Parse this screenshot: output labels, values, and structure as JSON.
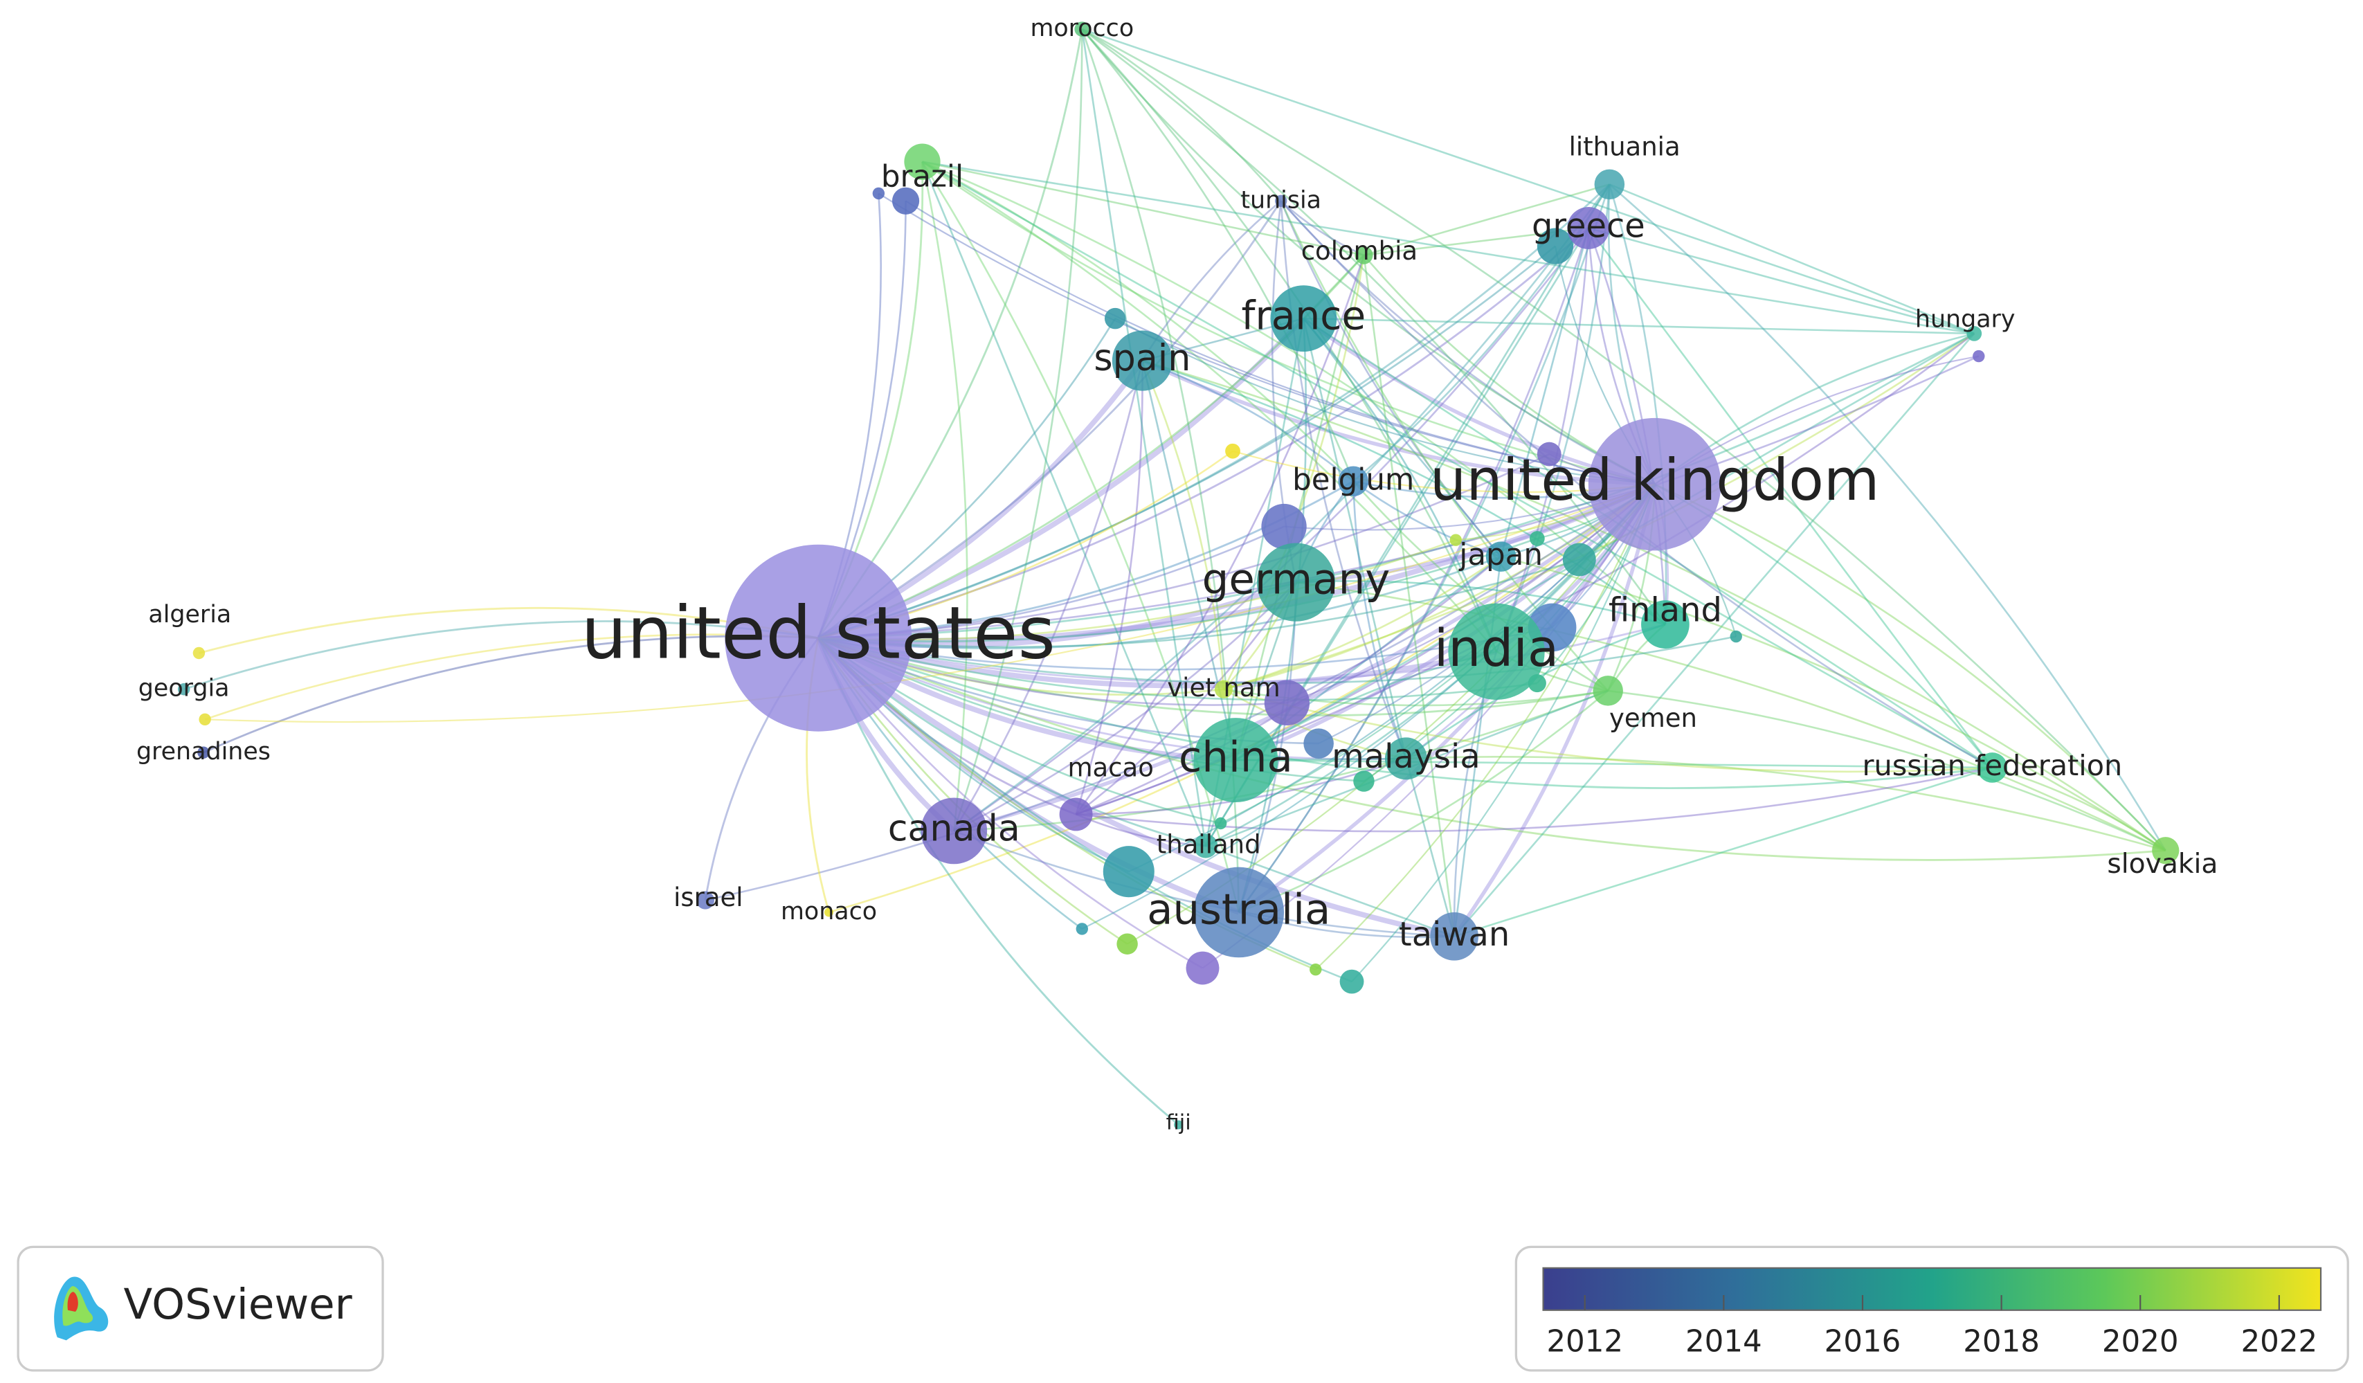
{
  "nodes": [
    {
      "label": "united states",
      "color": "#9a8fe0"
    },
    {
      "label": "united kingdom",
      "color": "#9a8fdc"
    },
    {
      "label": "india",
      "color": "#3dba95"
    },
    {
      "label": "china",
      "color": "#3bb897"
    },
    {
      "label": "germany",
      "color": "#3aa89a"
    },
    {
      "label": "australia",
      "color": "#5a86c0"
    },
    {
      "label": "france",
      "color": "#2f9fa5"
    },
    {
      "label": "spain",
      "color": "#3a9aa8"
    },
    {
      "label": "canada",
      "color": "#7a6fc8"
    },
    {
      "label": "taiwan",
      "color": "#5f8ac0"
    },
    {
      "label": "malaysia",
      "color": "#3aa99e"
    },
    {
      "label": "finland",
      "color": "#2db998"
    },
    {
      "label": "greece",
      "color": "#7a6fcc"
    },
    {
      "label": "japan",
      "color": "#3a9eb0"
    },
    {
      "label": "belgium",
      "color": "#4a8ec0"
    },
    {
      "label": "brazil",
      "color": "#6fd46f"
    },
    {
      "label": "russian federation",
      "color": "#3bc493"
    },
    {
      "label": "slovakia",
      "color": "#7ed45a"
    },
    {
      "label": "lithuania",
      "color": "#47a6b0"
    },
    {
      "label": "colombia",
      "color": "#66cc6a"
    },
    {
      "label": "tunisia",
      "color": "#6a7fc0"
    },
    {
      "label": "morocco",
      "color": "#5cc47c"
    },
    {
      "label": "hungary",
      "color": "#40b8a0"
    },
    {
      "label": "viet nam",
      "color": "#b8e04a"
    },
    {
      "label": "yemen",
      "color": "#6ad06a"
    },
    {
      "label": "thailand",
      "color": "#3bb0a0"
    },
    {
      "label": "macao",
      "color": "#7a66c8"
    },
    {
      "label": "israel",
      "color": "#6a7ac4"
    },
    {
      "label": "monaco",
      "color": "#e8e030"
    },
    {
      "label": "algeria",
      "color": "#e8e040"
    },
    {
      "label": "georgia",
      "color": "#4aa8a8"
    },
    {
      "label": "grenadines",
      "color": "#4a5aa8"
    },
    {
      "label": "fiji",
      "color": "#3ab0a0"
    }
  ],
  "legend": {
    "brand": "VOSviewer"
  },
  "colorbar": {
    "range": [
      2011.4,
      2022.6
    ],
    "ticks": [
      2012,
      2014,
      2016,
      2018,
      2020,
      2022
    ]
  }
}
